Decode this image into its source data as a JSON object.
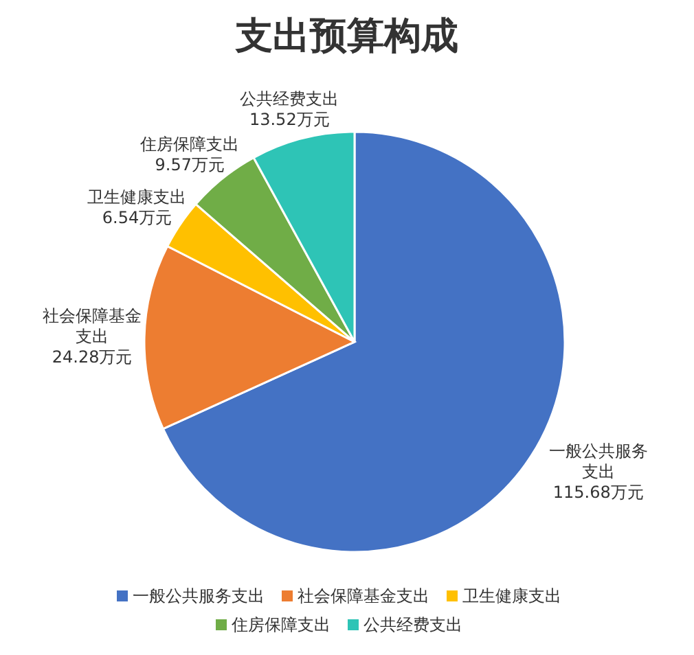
{
  "chart_data": {
    "type": "pie",
    "title": "支出预算构成",
    "categories": [
      "一般公共服务支出",
      "社会保障基金支出",
      "卫生健康支出",
      "住房保障支出",
      "公共经费支出"
    ],
    "values": [
      115.68,
      24.28,
      6.54,
      9.57,
      13.52
    ],
    "colors": [
      "#4472c4",
      "#ed7d31",
      "#ffc000",
      "#70ad47",
      "#2ec4b6"
    ],
    "value_labels": [
      "一般公共服务支出 115.68万元",
      "社会保障基金支出 24.28万元",
      "卫生健康支出 6.54万元",
      "住房保障支出 9.57万元",
      "公共经费支出 13.52万元"
    ],
    "legend": "bottom"
  }
}
